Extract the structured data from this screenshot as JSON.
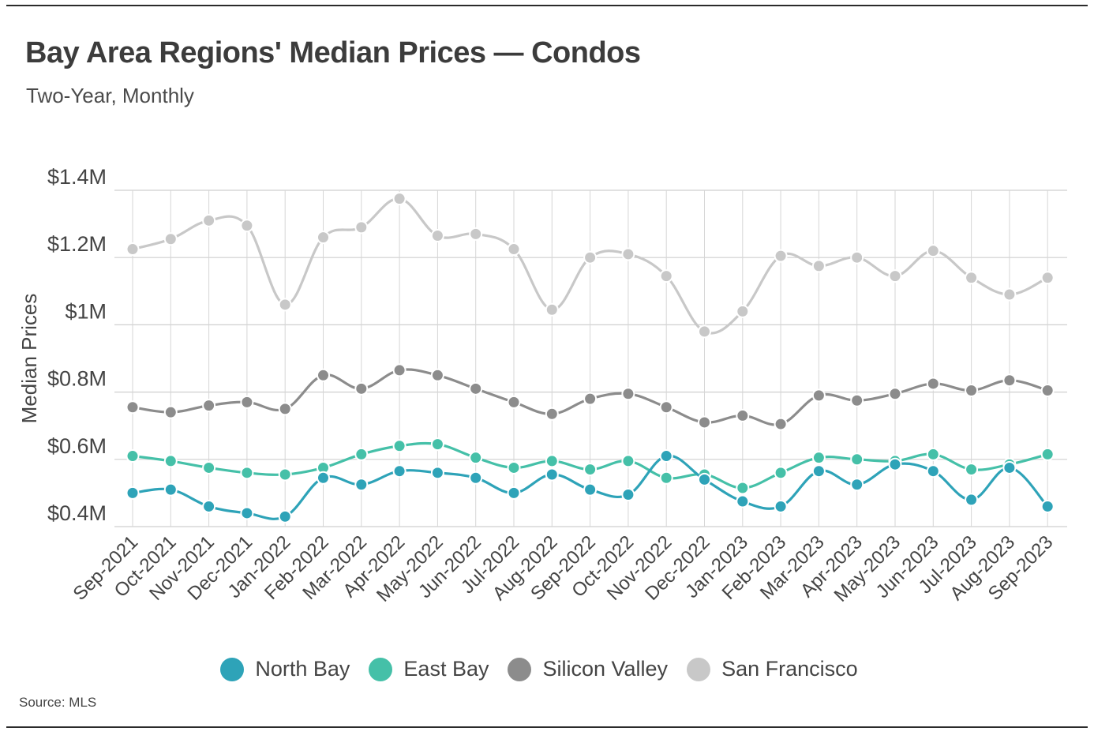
{
  "chart_data": {
    "type": "line",
    "title": "Bay Area Regions' Median Prices — Condos",
    "subtitle": "Two-Year, Monthly",
    "xlabel": "",
    "ylabel": "Median Prices",
    "ylim": [
      0.4,
      1.4
    ],
    "yticks": [
      {
        "value": 0.4,
        "label": "$0.4M"
      },
      {
        "value": 0.6,
        "label": "$0.6M"
      },
      {
        "value": 0.8,
        "label": "$0.8M"
      },
      {
        "value": 1.0,
        "label": "$1M"
      },
      {
        "value": 1.2,
        "label": "$1.2M"
      },
      {
        "value": 1.4,
        "label": "$1.4M"
      }
    ],
    "categories": [
      "Sep-2021",
      "Oct-2021",
      "Nov-2021",
      "Dec-2021",
      "Jan-2022",
      "Feb-2022",
      "Mar-2022",
      "Apr-2022",
      "May-2022",
      "Jun-2022",
      "Jul-2022",
      "Aug-2022",
      "Sep-2022",
      "Oct-2022",
      "Nov-2022",
      "Dec-2022",
      "Jan-2023",
      "Feb-2023",
      "Mar-2023",
      "Apr-2023",
      "May-2023",
      "Jun-2023",
      "Jul-2023",
      "Aug-2023",
      "Sep-2023"
    ],
    "series": [
      {
        "name": "San Francisco",
        "color": "#c8c8c8",
        "values": [
          1.225,
          1.255,
          1.31,
          1.295,
          1.06,
          1.26,
          1.29,
          1.375,
          1.265,
          1.27,
          1.225,
          1.045,
          1.2,
          1.21,
          1.145,
          0.98,
          1.04,
          1.205,
          1.175,
          1.2,
          1.145,
          1.22,
          1.14,
          1.09,
          1.14
        ]
      },
      {
        "name": "Silicon Valley",
        "color": "#8c8c8c",
        "values": [
          0.755,
          0.74,
          0.76,
          0.77,
          0.75,
          0.85,
          0.81,
          0.865,
          0.85,
          0.81,
          0.77,
          0.735,
          0.78,
          0.795,
          0.755,
          0.71,
          0.73,
          0.705,
          0.79,
          0.775,
          0.795,
          0.825,
          0.805,
          0.835,
          0.805
        ]
      },
      {
        "name": "East Bay",
        "color": "#45c0a8",
        "values": [
          0.61,
          0.595,
          0.575,
          0.56,
          0.555,
          0.575,
          0.615,
          0.64,
          0.645,
          0.605,
          0.575,
          0.595,
          0.57,
          0.595,
          0.545,
          0.555,
          0.515,
          0.56,
          0.605,
          0.6,
          0.595,
          0.615,
          0.57,
          0.585,
          0.615
        ]
      },
      {
        "name": "North Bay",
        "color": "#2ea3b8",
        "values": [
          0.5,
          0.51,
          0.46,
          0.44,
          0.43,
          0.545,
          0.525,
          0.565,
          0.56,
          0.545,
          0.5,
          0.555,
          0.51,
          0.495,
          0.61,
          0.54,
          0.475,
          0.46,
          0.565,
          0.525,
          0.585,
          0.565,
          0.48,
          0.575,
          0.46
        ]
      }
    ],
    "legend": [
      "North Bay",
      "East Bay",
      "Silicon Valley",
      "San Francisco"
    ],
    "legend_position": "bottom",
    "grid": true
  },
  "legend_items": [
    {
      "label": "North Bay",
      "color": "#2ea3b8"
    },
    {
      "label": "East Bay",
      "color": "#45c0a8"
    },
    {
      "label": "Silicon Valley",
      "color": "#8c8c8c"
    },
    {
      "label": "San Francisco",
      "color": "#c8c8c8"
    }
  ],
  "source": "Source: MLS"
}
